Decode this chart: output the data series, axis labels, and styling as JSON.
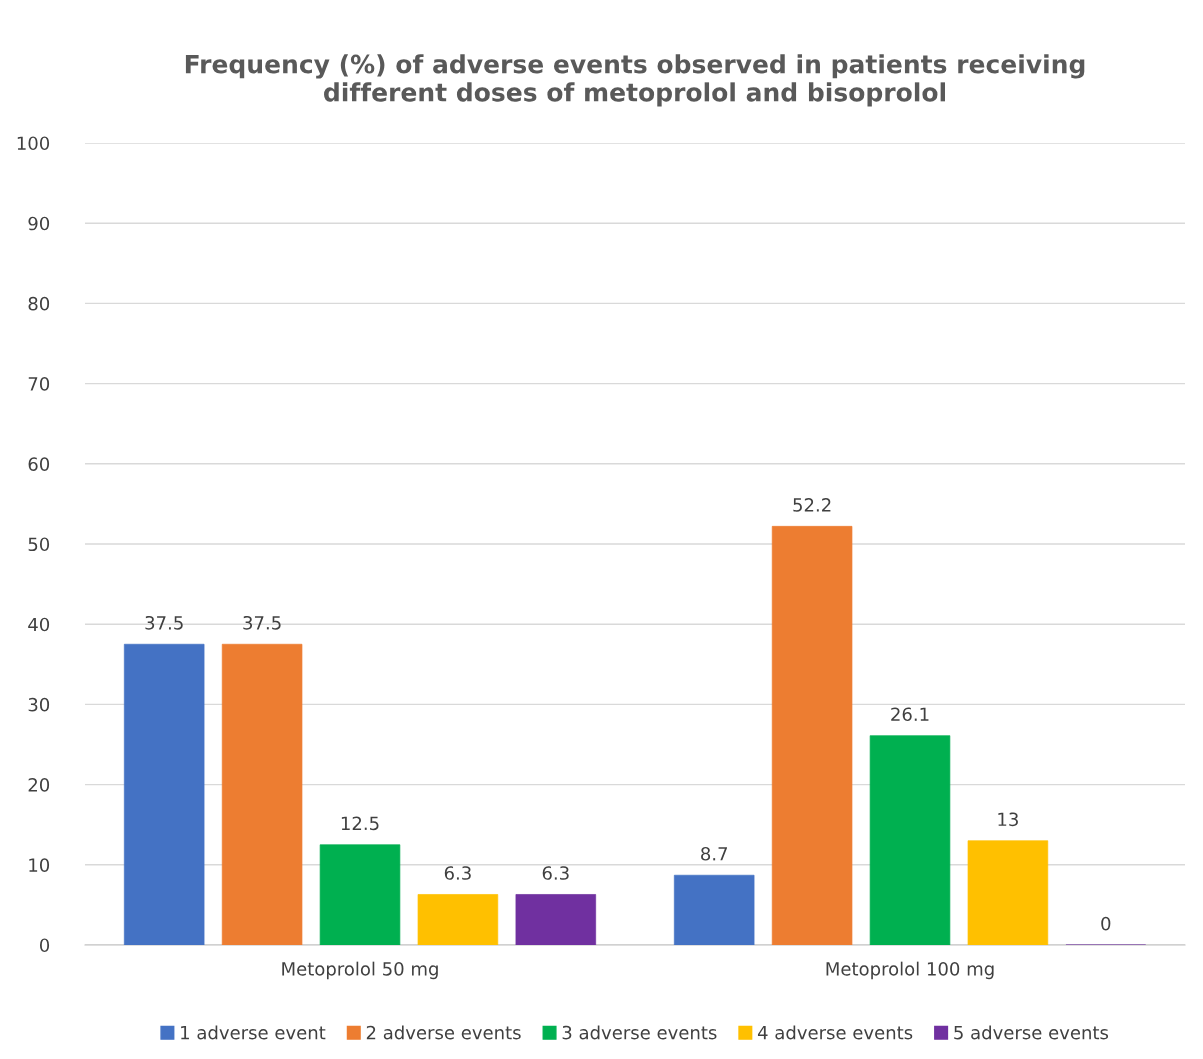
{
  "chart_data": {
    "type": "bar",
    "title": "Frequency (%) of adverse events observed in patients receiving\ndifferent doses of metoprolol and bisoprolol",
    "categories": [
      "Metoprolol 50 mg",
      "Metoprolol 100 mg"
    ],
    "series": [
      {
        "name": "1 adverse event",
        "color": "#4472c4",
        "values": [
          37.5,
          8.7
        ]
      },
      {
        "name": "2 adverse events",
        "color": "#ed7d31",
        "values": [
          37.5,
          52.2
        ]
      },
      {
        "name": "3 adverse events",
        "color": "#00b050",
        "values": [
          12.5,
          26.1
        ]
      },
      {
        "name": "4 adverse events",
        "color": "#ffc000",
        "values": [
          6.3,
          13
        ]
      },
      {
        "name": "5 adverse events",
        "color": "#7030a0",
        "values": [
          6.3,
          0
        ]
      }
    ],
    "ylim": [
      0,
      100
    ],
    "yticks": [
      0,
      10,
      20,
      30,
      40,
      50,
      60,
      70,
      80,
      90,
      100
    ],
    "grid": "y",
    "legend": "bottom",
    "data_labels": true
  }
}
